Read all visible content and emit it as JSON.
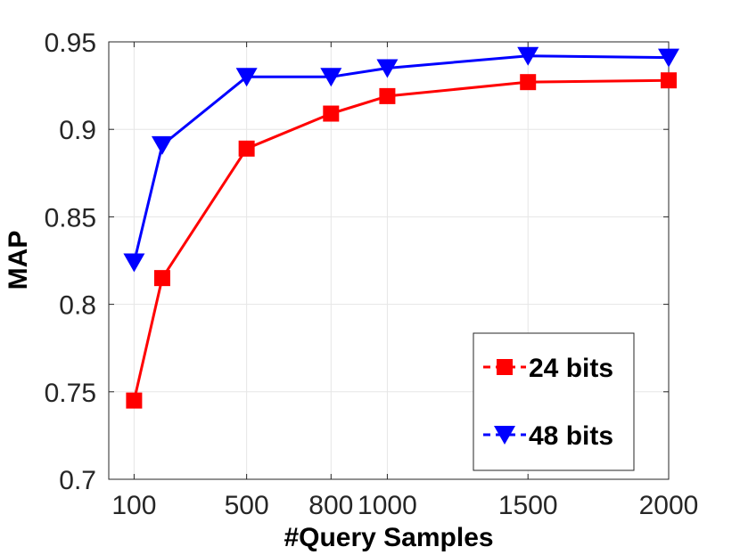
{
  "chart_data": {
    "type": "line",
    "xlabel": "#Query Samples",
    "ylabel": "MAP",
    "x": [
      100,
      200,
      500,
      800,
      1000,
      1500,
      2000
    ],
    "x_tick_labels": [
      "100",
      "500",
      "800",
      "1000",
      "1500",
      "2000"
    ],
    "x_tick_values": [
      100,
      500,
      800,
      1000,
      1500,
      2000
    ],
    "y_tick_labels": [
      "0.7",
      "0.75",
      "0.8",
      "0.85",
      "0.9",
      "0.95"
    ],
    "y_tick_values": [
      0.7,
      0.75,
      0.8,
      0.85,
      0.9,
      0.95
    ],
    "xlim": [
      10,
      2000
    ],
    "ylim": [
      0.7,
      0.95
    ],
    "grid": true,
    "legend_position": "bottom-right",
    "series": [
      {
        "name": "24 bits",
        "color": "#ff0000",
        "marker": "square",
        "values": [
          0.745,
          0.815,
          0.889,
          0.909,
          0.919,
          0.927,
          0.928
        ]
      },
      {
        "name": "48 bits",
        "color": "#0000ff",
        "marker": "triangle-down",
        "values": [
          0.824,
          0.891,
          0.93,
          0.93,
          0.935,
          0.942,
          0.941
        ]
      }
    ]
  }
}
